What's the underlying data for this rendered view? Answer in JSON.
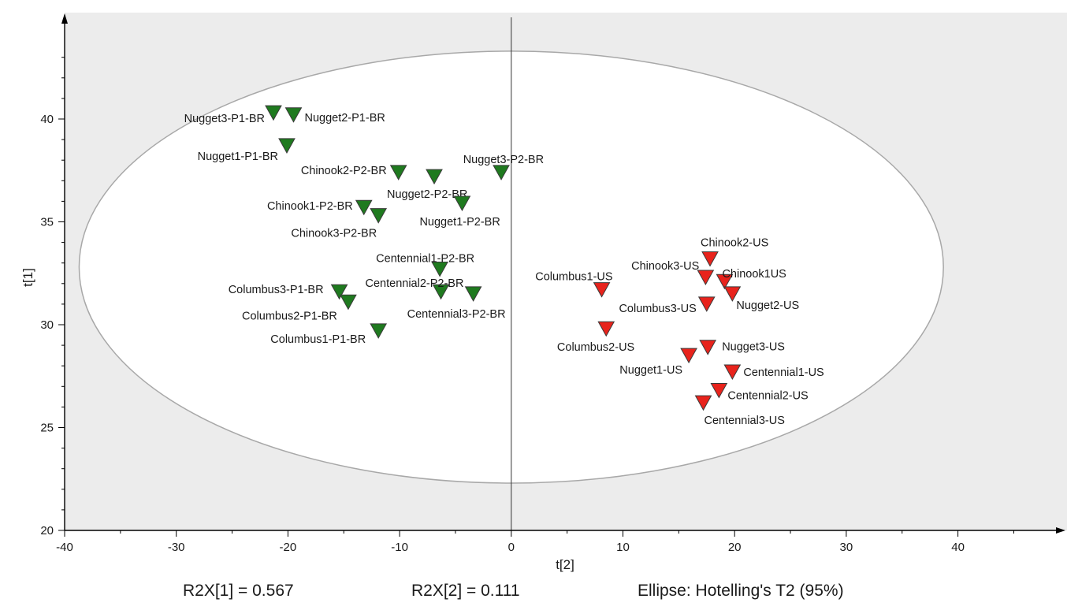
{
  "chart_data": {
    "type": "scatter",
    "xlabel": "t[2]",
    "ylabel": "t[1]",
    "xlim": [
      -40,
      50
    ],
    "ylim": [
      20,
      44
    ],
    "x_ticks": [
      -40,
      -30,
      -20,
      -10,
      0,
      10,
      20,
      30,
      40
    ],
    "y_ticks": [
      20,
      25,
      30,
      35,
      40
    ],
    "ellipse_label": "Ellipse: Hotelling's T2 (95%)",
    "ellipse": {
      "cx": 0,
      "cy": 32.8,
      "rx": 38.7,
      "ry": 10.5
    },
    "colors": {
      "BR": "#1f7a1f",
      "US": "#e8231c",
      "background": "#ececec",
      "ellipse_fill": "#ffffff"
    },
    "marker": "triangle-down",
    "series": [
      {
        "group": "BR",
        "points": [
          {
            "label": "Nugget3-P1-BR",
            "x": -21.3,
            "y": 40.3
          },
          {
            "label": "Nugget2-P1-BR",
            "x": -19.5,
            "y": 40.2
          },
          {
            "label": "Nugget1-P1-BR",
            "x": -20.1,
            "y": 38.7
          },
          {
            "label": "Chinook2-P2-BR",
            "x": -10.1,
            "y": 37.4
          },
          {
            "label": "Nugget3-P2-BR",
            "x": -0.9,
            "y": 37.4
          },
          {
            "label": "Nugget2-P2-BR",
            "x": -6.9,
            "y": 37.2
          },
          {
            "label": "Chinook1-P2-BR",
            "x": -13.2,
            "y": 35.7
          },
          {
            "label": "Chinook3-P2-BR",
            "x": -11.9,
            "y": 35.3
          },
          {
            "label": "Nugget1-P2-BR",
            "x": -4.4,
            "y": 35.9
          },
          {
            "label": "Centennial1-P2-BR",
            "x": -6.4,
            "y": 32.7
          },
          {
            "label": "Centennial2-P2-BR",
            "x": -6.3,
            "y": 31.6
          },
          {
            "label": "Centennial3-P2-BR",
            "x": -3.4,
            "y": 31.5
          },
          {
            "label": "Columbus3-P1-BR",
            "x": -15.4,
            "y": 31.6
          },
          {
            "label": "Columbus2-P1-BR",
            "x": -14.6,
            "y": 31.1
          },
          {
            "label": "Columbus1-P1-BR",
            "x": -11.9,
            "y": 29.7
          }
        ]
      },
      {
        "group": "US",
        "points": [
          {
            "label": "Chinook2-US",
            "x": 17.8,
            "y": 33.2
          },
          {
            "label": "Chinook3-US",
            "x": 17.4,
            "y": 32.3
          },
          {
            "label": "Chinook1US",
            "x": 19.1,
            "y": 32.1
          },
          {
            "label": "Nugget2-US",
            "x": 19.8,
            "y": 31.5
          },
          {
            "label": "Columbus1-US",
            "x": 8.1,
            "y": 31.7
          },
          {
            "label": "Columbus3-US",
            "x": 17.5,
            "y": 31.0
          },
          {
            "label": "Columbus2-US",
            "x": 8.5,
            "y": 29.8
          },
          {
            "label": "Nugget3-US",
            "x": 17.6,
            "y": 28.9
          },
          {
            "label": "Nugget1-US",
            "x": 15.9,
            "y": 28.5
          },
          {
            "label": "Centennial1-US",
            "x": 19.8,
            "y": 27.7
          },
          {
            "label": "Centennial2-US",
            "x": 18.6,
            "y": 26.8
          },
          {
            "label": "Centennial3-US",
            "x": 17.2,
            "y": 26.2
          }
        ]
      }
    ],
    "footer": {
      "r2x1": "R2X[1] = 0.567",
      "r2x2": "R2X[2] = 0.111"
    }
  }
}
